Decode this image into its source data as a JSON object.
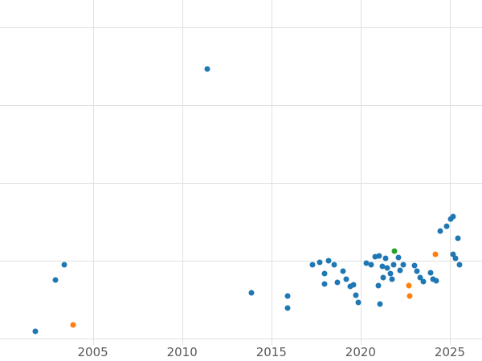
{
  "figure": {
    "background_color": "#ffffff"
  },
  "chart_data": {
    "type": "scatter",
    "title": "",
    "xlabel": "",
    "ylabel": "",
    "grid": true,
    "grid_color": "#e0e0e0",
    "tick_label_color": "#595959",
    "x_ticks": [
      2005,
      2010,
      2015,
      2020,
      2025
    ],
    "x_tick_labels": [
      "2005",
      "2010",
      "2015",
      "2020",
      "2025"
    ],
    "xlim": [
      1999.8,
      2026.8
    ],
    "ylim": [
      -0.08,
      4.35
    ],
    "y_gridlines": [
      0,
      1,
      2,
      3,
      4
    ],
    "marker_diameter_px": 7,
    "series": [
      {
        "name": "series-blue",
        "color": "#1f77b4",
        "points": [
          [
            2001.8,
            0.1
          ],
          [
            2002.9,
            0.75
          ],
          [
            2003.4,
            0.95
          ],
          [
            2011.4,
            3.46
          ],
          [
            2013.9,
            0.59
          ],
          [
            2015.9,
            0.55
          ],
          [
            2015.9,
            0.39
          ],
          [
            2017.3,
            0.95
          ],
          [
            2017.7,
            0.98
          ],
          [
            2018.0,
            0.84
          ],
          [
            2018.0,
            0.7
          ],
          [
            2018.2,
            1.0
          ],
          [
            2018.5,
            0.95
          ],
          [
            2018.7,
            0.72
          ],
          [
            2019.0,
            0.87
          ],
          [
            2019.2,
            0.77
          ],
          [
            2019.4,
            0.67
          ],
          [
            2019.6,
            0.69
          ],
          [
            2019.75,
            0.56
          ],
          [
            2019.85,
            0.47
          ],
          [
            2020.3,
            0.97
          ],
          [
            2020.6,
            0.95
          ],
          [
            2020.8,
            1.05
          ],
          [
            2021.0,
            0.68
          ],
          [
            2021.05,
            1.06
          ],
          [
            2021.1,
            0.45
          ],
          [
            2021.2,
            0.93
          ],
          [
            2021.25,
            0.79
          ],
          [
            2021.4,
            1.03
          ],
          [
            2021.5,
            0.91
          ],
          [
            2021.65,
            0.84
          ],
          [
            2021.75,
            0.77
          ],
          [
            2021.85,
            0.95
          ],
          [
            2022.1,
            1.04
          ],
          [
            2022.2,
            0.88
          ],
          [
            2022.4,
            0.95
          ],
          [
            2023.0,
            0.94
          ],
          [
            2023.15,
            0.87
          ],
          [
            2023.35,
            0.79
          ],
          [
            2023.5,
            0.73
          ],
          [
            2023.9,
            0.85
          ],
          [
            2024.05,
            0.77
          ],
          [
            2024.25,
            0.74
          ],
          [
            2024.45,
            1.38
          ],
          [
            2024.8,
            1.45
          ],
          [
            2025.05,
            1.54
          ],
          [
            2025.2,
            1.57
          ],
          [
            2025.2,
            1.08
          ],
          [
            2025.3,
            1.03
          ],
          [
            2025.45,
            1.29
          ],
          [
            2025.55,
            0.95
          ]
        ]
      },
      {
        "name": "series-orange",
        "color": "#ff7f0e",
        "points": [
          [
            2003.9,
            0.18
          ],
          [
            2022.7,
            0.68
          ],
          [
            2022.75,
            0.55
          ],
          [
            2024.2,
            1.08
          ]
        ]
      },
      {
        "name": "series-green",
        "color": "#2ca02c",
        "points": [
          [
            2021.9,
            1.13
          ]
        ]
      }
    ]
  }
}
